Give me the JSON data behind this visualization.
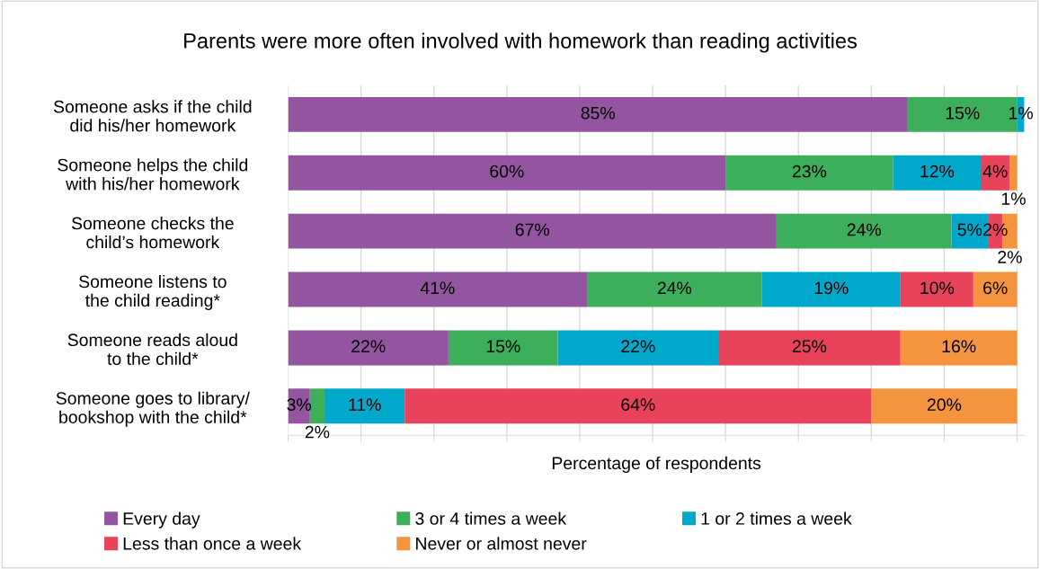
{
  "chart_data": {
    "type": "bar",
    "orientation": "horizontal",
    "stacked": true,
    "title": "Parents were more often involved with homework than reading activities",
    "xlabel": "Percentage of respondents",
    "categories": [
      "Someone asks if the child\ndid his/her homework",
      "Someone helps the child\nwith his/her homework",
      "Someone checks the\nchild’s homework",
      "Someone listens to\nthe child reading*",
      "Someone reads aloud\nto the child*",
      "Someone goes to library/\nbookshop with the child*"
    ],
    "series": [
      {
        "name": "Every day",
        "color": "#9355a0",
        "values": [
          85,
          60,
          67,
          41,
          22,
          3
        ],
        "value_labels": [
          "85%",
          "60%",
          "67%",
          "41%",
          "22%",
          "3%"
        ]
      },
      {
        "name": "3 or 4 times a week",
        "color": "#3daf5b",
        "values": [
          15,
          23,
          24,
          24,
          15,
          2
        ],
        "value_labels": [
          "15%",
          "23%",
          "24%",
          "24%",
          "15%",
          "2%"
        ]
      },
      {
        "name": "1 or 2 times a week",
        "color": "#00a9cc",
        "values": [
          1,
          12,
          5,
          19,
          22,
          11
        ],
        "value_labels": [
          "1%",
          "12%",
          "5%",
          "19%",
          "22%",
          "11%"
        ]
      },
      {
        "name": "Less than once a week",
        "color": "#e8435a",
        "values": [
          null,
          4,
          2,
          10,
          25,
          64
        ],
        "value_labels": [
          null,
          "4%",
          "2%",
          "10%",
          "25%",
          "64%"
        ]
      },
      {
        "name": "Never or almost never",
        "color": "#f5943f",
        "values": [
          null,
          1,
          2,
          6,
          16,
          20
        ],
        "value_labels": [
          null,
          "1%",
          "2%",
          "6%",
          "16%",
          "20%"
        ]
      }
    ],
    "xlim": [
      0,
      101
    ],
    "xticks": [
      {
        "value": 0,
        "label": null
      },
      {
        "value": 10,
        "label": null
      },
      {
        "value": 20,
        "label": null
      },
      {
        "value": 30,
        "label": null
      },
      {
        "value": 40,
        "label": null
      },
      {
        "value": 50,
        "label": null
      },
      {
        "value": 60,
        "label": null
      },
      {
        "value": 70,
        "label": null
      },
      {
        "value": 80,
        "label": null
      },
      {
        "value": 90,
        "label": null
      },
      {
        "value": 100,
        "label": null
      }
    ],
    "tick_labels": "y",
    "grid": "x",
    "legend": "bottom"
  }
}
